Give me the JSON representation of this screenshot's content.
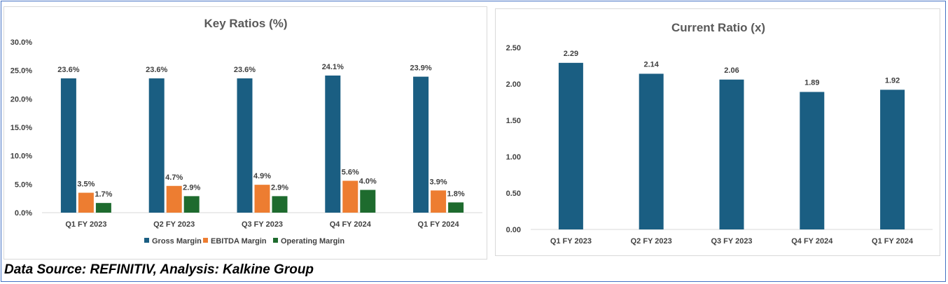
{
  "footer": {
    "source_text": "Data Source: REFINITIV, Analysis: Kalkine Group"
  },
  "colors": {
    "gross": "#1a5e82",
    "ebitda": "#ed7d31",
    "operating": "#1e6b2e",
    "current": "#1a5e82",
    "frame_border": "#4472c4"
  },
  "chart_data": [
    {
      "type": "bar",
      "title": "Key Ratios (%)",
      "categories": [
        "Q1 FY 2023",
        "Q2 FY 2023",
        "Q3 FY 2023",
        "Q4 FY 2024",
        "Q1 FY 2024"
      ],
      "series": [
        {
          "name": "Gross Margin",
          "values": [
            23.6,
            23.6,
            23.6,
            24.1,
            23.9
          ],
          "labels": [
            "23.6%",
            "23.6%",
            "23.6%",
            "24.1%",
            "23.9%"
          ],
          "color": "#1a5e82"
        },
        {
          "name": "EBITDA Margin",
          "values": [
            3.5,
            4.7,
            4.9,
            5.6,
            3.9
          ],
          "labels": [
            "3.5%",
            "4.7%",
            "4.9%",
            "5.6%",
            "3.9%"
          ],
          "color": "#ed7d31"
        },
        {
          "name": "Operating Margin",
          "values": [
            1.7,
            2.9,
            2.9,
            4.0,
            1.8
          ],
          "labels": [
            "1.7%",
            "2.9%",
            "2.9%",
            "4.0%",
            "1.8%"
          ],
          "color": "#1e6b2e"
        }
      ],
      "ylim": [
        0,
        30
      ],
      "yticks": [
        "0.0%",
        "5.0%",
        "10.0%",
        "15.0%",
        "20.0%",
        "25.0%",
        "30.0%"
      ],
      "grid": false,
      "legend": "bottom"
    },
    {
      "type": "bar",
      "title": "Current Ratio (x)",
      "categories": [
        "Q1 FY 2023",
        "Q2 FY 2023",
        "Q3 FY 2023",
        "Q4 FY 2024",
        "Q1 FY 2024"
      ],
      "series": [
        {
          "values": [
            2.29,
            2.14,
            2.06,
            1.89,
            1.92
          ],
          "labels": [
            "2.29",
            "2.14",
            "2.06",
            "1.89",
            "1.92"
          ],
          "color": "#1a5e82"
        }
      ],
      "ylim": [
        0,
        2.5
      ],
      "yticks": [
        "0.00",
        "0.50",
        "1.00",
        "1.50",
        "2.00",
        "2.50"
      ],
      "grid": false,
      "legend": "none"
    }
  ]
}
